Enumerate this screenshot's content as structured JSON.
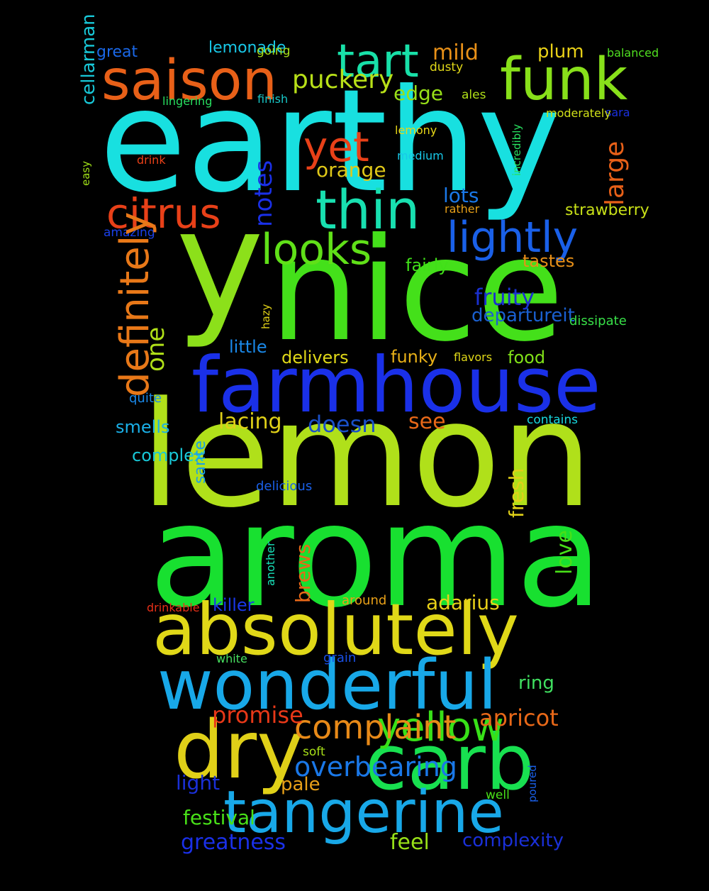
{
  "words": [
    {
      "text": "earthy",
      "color": "#18e0e0"
    },
    {
      "text": "nice",
      "color": "#44e01a"
    },
    {
      "text": "y",
      "color": "#8ce01a"
    },
    {
      "text": "lemon",
      "color": "#b0e01a"
    },
    {
      "text": "aroma",
      "color": "#18e030"
    },
    {
      "text": "farmhouse",
      "color": "#1a30e8"
    },
    {
      "text": "absolutely",
      "color": "#e0d818"
    },
    {
      "text": "wonderful",
      "color": "#18a8e8"
    },
    {
      "text": "dry",
      "color": "#e0d018"
    },
    {
      "text": "carb",
      "color": "#18e050"
    },
    {
      "text": "tangerine",
      "color": "#18a8e8"
    },
    {
      "text": "funk",
      "color": "#88e01a"
    },
    {
      "text": "saison",
      "color": "#e86018"
    },
    {
      "text": "tart",
      "color": "#18e0a8"
    },
    {
      "text": "thin",
      "color": "#18e0b0"
    },
    {
      "text": "citrus",
      "color": "#e84018"
    },
    {
      "text": "yet",
      "color": "#e84018"
    },
    {
      "text": "looks",
      "color": "#60e018"
    },
    {
      "text": "lightly",
      "color": "#1a60e8"
    },
    {
      "text": "yellow",
      "color": "#38e018"
    },
    {
      "text": "complaint",
      "color": "#e88a18"
    },
    {
      "text": "puckery",
      "color": "#b8e018"
    },
    {
      "text": "mild",
      "color": "#e89018"
    },
    {
      "text": "edge",
      "color": "#98e018"
    },
    {
      "text": "orange",
      "color": "#e0c818"
    },
    {
      "text": "lots",
      "color": "#1a78e8"
    },
    {
      "text": "plum",
      "color": "#e8d018"
    },
    {
      "text": "great",
      "color": "#1a68e8"
    },
    {
      "text": "lemonade",
      "color": "#18c8e8"
    },
    {
      "text": "going",
      "color": "#a8e018"
    },
    {
      "text": "dusty",
      "color": "#e0d818"
    },
    {
      "text": "balanced",
      "color": "#50e020"
    },
    {
      "text": "ales",
      "color": "#b0e018"
    },
    {
      "text": "sara",
      "color": "#1a30e0"
    },
    {
      "text": "moderately",
      "color": "#d0e018"
    },
    {
      "text": "lingering",
      "color": "#28e060"
    },
    {
      "text": "finish",
      "color": "#18c8c8"
    },
    {
      "text": "lemony",
      "color": "#e8d818"
    },
    {
      "text": "medium",
      "color": "#18c8e8"
    },
    {
      "text": "drink",
      "color": "#e84018"
    },
    {
      "text": "rather",
      "color": "#e8a018"
    },
    {
      "text": "strawberry",
      "color": "#c8e018"
    },
    {
      "text": "amazing",
      "color": "#1a40e8"
    },
    {
      "text": "fairly",
      "color": "#40e018"
    },
    {
      "text": "tastes",
      "color": "#e89018"
    },
    {
      "text": "fruity",
      "color": "#1a30d0"
    },
    {
      "text": "departureit",
      "color": "#1a60d0"
    },
    {
      "text": "dissipate",
      "color": "#38e048"
    },
    {
      "text": "little",
      "color": "#1a88e8"
    },
    {
      "text": "delivers",
      "color": "#e0d818"
    },
    {
      "text": "funky",
      "color": "#e8b018"
    },
    {
      "text": "flavors",
      "color": "#e0d818"
    },
    {
      "text": "food",
      "color": "#80e018"
    },
    {
      "text": "quite",
      "color": "#1a88e8"
    },
    {
      "text": "lacing",
      "color": "#e0d018"
    },
    {
      "text": "doesn",
      "color": "#1a50c8"
    },
    {
      "text": "see",
      "color": "#e86818"
    },
    {
      "text": "contains",
      "color": "#18d8e0"
    },
    {
      "text": "smells",
      "color": "#1ab0e8"
    },
    {
      "text": "complex",
      "color": "#18c8d8"
    },
    {
      "text": "delicious",
      "color": "#1a60e8"
    },
    {
      "text": "drinkable",
      "color": "#e83018"
    },
    {
      "text": "killer",
      "color": "#1a38e8"
    },
    {
      "text": "around",
      "color": "#e8a018"
    },
    {
      "text": "adarius",
      "color": "#e8d018"
    },
    {
      "text": "white",
      "color": "#48e060"
    },
    {
      "text": "grain",
      "color": "#1a50e8"
    },
    {
      "text": "ring",
      "color": "#40e060"
    },
    {
      "text": "promise",
      "color": "#e83818"
    },
    {
      "text": "apricot",
      "color": "#e86818"
    },
    {
      "text": "soft",
      "color": "#a8e018"
    },
    {
      "text": "overbearing",
      "color": "#1a78e8"
    },
    {
      "text": "light",
      "color": "#1a30d8"
    },
    {
      "text": "pale",
      "color": "#e8a018"
    },
    {
      "text": "well",
      "color": "#48e018"
    },
    {
      "text": "festival",
      "color": "#48e018"
    },
    {
      "text": "greatness",
      "color": "#1a30e8"
    },
    {
      "text": "feel",
      "color": "#98e018"
    },
    {
      "text": "complexity",
      "color": "#1a30d8"
    },
    {
      "text": "definitely",
      "color": "#e87818"
    },
    {
      "text": "one",
      "color": "#b0e018"
    },
    {
      "text": "notes",
      "color": "#1a30e8"
    },
    {
      "text": "large",
      "color": "#e86018"
    },
    {
      "text": "cellarman",
      "color": "#18c8d8"
    },
    {
      "text": "incredibly",
      "color": "#28e060"
    },
    {
      "text": "easy",
      "color": "#a0e018"
    },
    {
      "text": "hazy",
      "color": "#e0d018"
    },
    {
      "text": "sante",
      "color": "#18a0e8"
    },
    {
      "text": "fresh",
      "color": "#e0d018"
    },
    {
      "text": "love",
      "color": "#48e018"
    },
    {
      "text": "another",
      "color": "#18e0b8"
    },
    {
      "text": "brews",
      "color": "#e86818"
    },
    {
      "text": "poured",
      "color": "#1a60e8"
    }
  ]
}
